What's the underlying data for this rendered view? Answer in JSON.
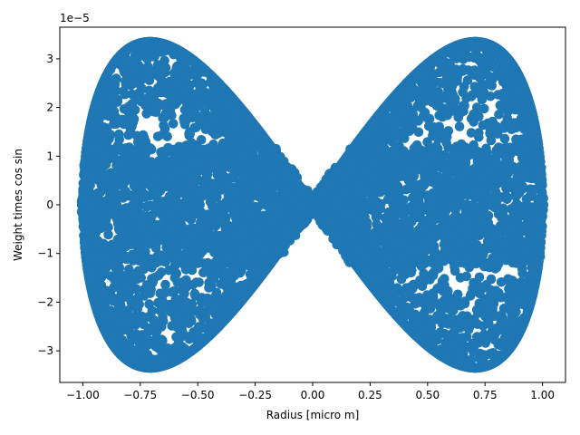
{
  "chart_data": {
    "type": "scatter",
    "title": "",
    "xlabel": "Radius [micro m]",
    "ylabel": "Weight times  cos  sin",
    "y_offset_label": "1e−5",
    "xlim": [
      -1.1,
      1.1
    ],
    "ylim": [
      -3.65,
      3.65
    ],
    "y_scale_factor": 1e-05,
    "x_ticks": [
      -1.0,
      -0.75,
      -0.5,
      -0.25,
      0.0,
      0.25,
      0.5,
      0.75,
      1.0
    ],
    "x_tick_labels": [
      "−1.00",
      "−0.75",
      "−0.50",
      "−0.25",
      "0.00",
      "0.25",
      "0.50",
      "0.75",
      "1.00"
    ],
    "y_ticks": [
      -3,
      -2,
      -1,
      0,
      1,
      2,
      3
    ],
    "y_tick_labels": [
      "−3",
      "−2",
      "−1",
      "0",
      "1",
      "2",
      "3"
    ],
    "marker_color": "#1f77b4",
    "grid": false,
    "legend": "none",
    "series": [
      {
        "description_shape": "bow-tie envelope: |y| <= 6.67e-5 * |x| * sqrt(1 - x^2), dense band near y=0 (|y| < 1.2e-5), x in [-1, 1]",
        "envelope_peak": [
          [
            -0.71,
            3.35
          ],
          [
            0.71,
            3.35
          ],
          [
            -0.71,
            -3.35
          ],
          [
            0.71,
            -3.35
          ]
        ],
        "dense_band_halfwidth": 1.2
      }
    ]
  }
}
